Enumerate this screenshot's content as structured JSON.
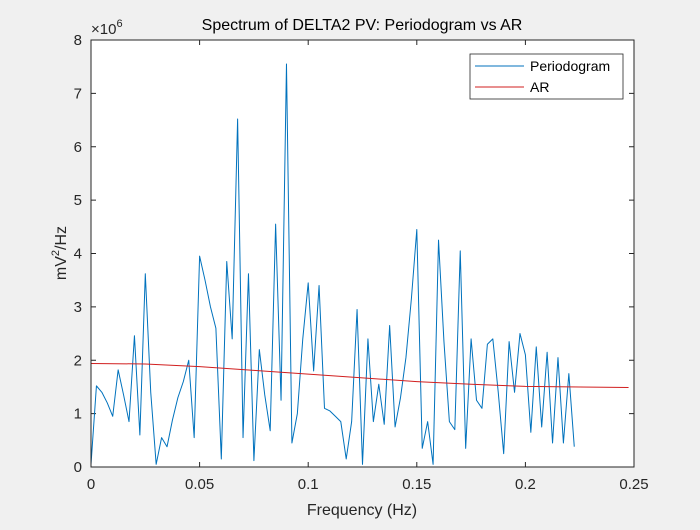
{
  "chart_data": {
    "type": "line",
    "title": "Spectrum of DELTA2 PV: Periodogram vs AR",
    "xlabel": "Frequency (Hz)",
    "ylabel_base": "mV",
    "ylabel_sup": "2",
    "ylabel_tail": "/Hz",
    "exponent_prefix": "×10",
    "exponent_power": "6",
    "xlim": [
      0,
      0.25
    ],
    "ylim": [
      0,
      8
    ],
    "x_ticks": [
      0,
      0.05,
      0.1,
      0.15,
      0.2,
      0.25
    ],
    "x_tick_labels": [
      "0",
      "0.05",
      "0.1",
      "0.15",
      "0.2",
      "0.25"
    ],
    "y_ticks": [
      0,
      1,
      2,
      3,
      4,
      5,
      6,
      7,
      8
    ],
    "y_tick_labels": [
      "0",
      "1",
      "2",
      "3",
      "4",
      "5",
      "6",
      "7",
      "8"
    ],
    "legend_position": "top-right",
    "series": [
      {
        "name": "Periodogram",
        "color": "#0072bd",
        "x_start": 0,
        "x_step": 0.0025,
        "values": [
          0.05,
          1.52,
          1.4,
          1.2,
          0.95,
          1.82,
          1.35,
          0.85,
          2.46,
          0.6,
          3.62,
          1.4,
          0.05,
          0.55,
          0.38,
          0.88,
          1.3,
          1.6,
          2.0,
          0.55,
          3.95,
          3.5,
          3.0,
          2.6,
          0.15,
          3.85,
          2.4,
          6.52,
          0.55,
          3.62,
          0.12,
          2.2,
          1.35,
          0.68,
          4.55,
          1.25,
          7.55,
          0.45,
          1.0,
          2.4,
          3.45,
          1.8,
          3.4,
          1.1,
          1.05,
          0.95,
          0.85,
          0.15,
          0.85,
          2.95,
          0.05,
          2.4,
          0.85,
          1.55,
          0.8,
          2.65,
          0.75,
          1.3,
          2.05,
          3.15,
          4.45,
          0.35,
          0.85,
          0.05,
          4.25,
          2.35,
          0.85,
          0.7,
          4.05,
          0.35,
          2.4,
          1.25,
          1.1,
          2.3,
          2.4,
          1.4,
          0.25,
          2.35,
          1.4,
          2.5,
          2.1,
          0.65,
          2.25,
          0.75,
          2.15,
          0.45,
          2.05,
          0.45,
          1.75,
          0.38
        ]
      },
      {
        "name": "AR",
        "color": "#d11f1f",
        "points": [
          [
            0,
            1.94
          ],
          [
            0.025,
            1.93
          ],
          [
            0.05,
            1.88
          ],
          [
            0.075,
            1.81
          ],
          [
            0.1,
            1.74
          ],
          [
            0.125,
            1.67
          ],
          [
            0.15,
            1.6
          ],
          [
            0.175,
            1.55
          ],
          [
            0.2,
            1.51
          ],
          [
            0.225,
            1.5
          ],
          [
            0.2475,
            1.49
          ]
        ]
      }
    ]
  }
}
